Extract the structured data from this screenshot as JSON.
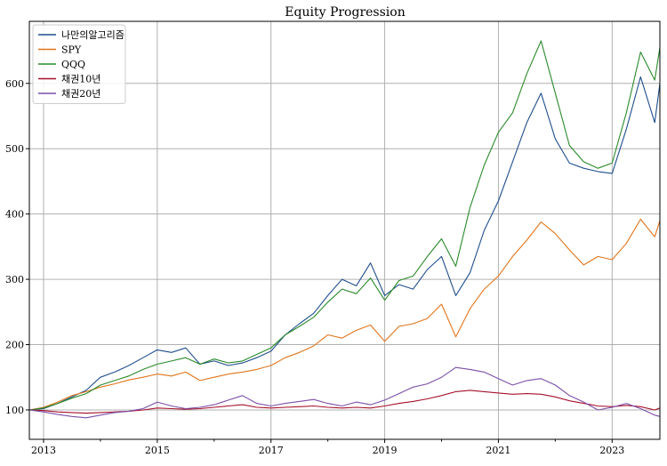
{
  "chart_data": {
    "type": "line",
    "title": "Equity Progression",
    "xlabel": "",
    "ylabel": "",
    "xlim": [
      2012.75,
      2023.84
    ],
    "ylim": [
      55,
      695
    ],
    "grid": true,
    "legend_position": "top-left",
    "x_ticks": [
      2013,
      2015,
      2017,
      2019,
      2021,
      2023
    ],
    "x_tick_labels": [
      "2013",
      "2015",
      "2017",
      "2019",
      "2021",
      "2023"
    ],
    "y_ticks": [
      100,
      200,
      300,
      400,
      500,
      600
    ],
    "y_tick_labels": [
      "100",
      "200",
      "300",
      "400",
      "500",
      "600"
    ],
    "series": [
      {
        "name": "나만의알고리즘",
        "color": "#1f4e8c",
        "points": [
          [
            2012.75,
            100
          ],
          [
            2013.0,
            102
          ],
          [
            2013.25,
            110
          ],
          [
            2013.5,
            120
          ],
          [
            2013.75,
            130
          ],
          [
            2014.0,
            150
          ],
          [
            2014.25,
            158
          ],
          [
            2014.5,
            168
          ],
          [
            2014.75,
            180
          ],
          [
            2015.0,
            192
          ],
          [
            2015.25,
            188
          ],
          [
            2015.5,
            195
          ],
          [
            2015.75,
            170
          ],
          [
            2016.0,
            175
          ],
          [
            2016.25,
            168
          ],
          [
            2016.5,
            172
          ],
          [
            2016.75,
            180
          ],
          [
            2017.0,
            190
          ],
          [
            2017.25,
            215
          ],
          [
            2017.5,
            232
          ],
          [
            2017.75,
            248
          ],
          [
            2018.0,
            275
          ],
          [
            2018.25,
            300
          ],
          [
            2018.5,
            290
          ],
          [
            2018.75,
            325
          ],
          [
            2019.0,
            275
          ],
          [
            2019.25,
            292
          ],
          [
            2019.5,
            285
          ],
          [
            2019.75,
            315
          ],
          [
            2020.0,
            335
          ],
          [
            2020.25,
            275
          ],
          [
            2020.5,
            310
          ],
          [
            2020.75,
            375
          ],
          [
            2021.0,
            420
          ],
          [
            2021.25,
            480
          ],
          [
            2021.5,
            540
          ],
          [
            2021.75,
            585
          ],
          [
            2022.0,
            515
          ],
          [
            2022.25,
            478
          ],
          [
            2022.5,
            470
          ],
          [
            2022.75,
            465
          ],
          [
            2023.0,
            462
          ],
          [
            2023.25,
            530
          ],
          [
            2023.5,
            610
          ],
          [
            2023.75,
            540
          ],
          [
            2023.84,
            600
          ]
        ]
      },
      {
        "name": "SPY",
        "color": "#e0741a",
        "points": [
          [
            2012.75,
            100
          ],
          [
            2013.0,
            104
          ],
          [
            2013.25,
            112
          ],
          [
            2013.5,
            122
          ],
          [
            2013.75,
            128
          ],
          [
            2014.0,
            135
          ],
          [
            2014.25,
            140
          ],
          [
            2014.5,
            146
          ],
          [
            2014.75,
            150
          ],
          [
            2015.0,
            155
          ],
          [
            2015.25,
            152
          ],
          [
            2015.5,
            158
          ],
          [
            2015.75,
            145
          ],
          [
            2016.0,
            150
          ],
          [
            2016.25,
            155
          ],
          [
            2016.5,
            158
          ],
          [
            2016.75,
            162
          ],
          [
            2017.0,
            168
          ],
          [
            2017.25,
            180
          ],
          [
            2017.5,
            188
          ],
          [
            2017.75,
            198
          ],
          [
            2018.0,
            215
          ],
          [
            2018.25,
            210
          ],
          [
            2018.5,
            222
          ],
          [
            2018.75,
            230
          ],
          [
            2019.0,
            205
          ],
          [
            2019.25,
            228
          ],
          [
            2019.5,
            232
          ],
          [
            2019.75,
            240
          ],
          [
            2020.0,
            262
          ],
          [
            2020.25,
            212
          ],
          [
            2020.5,
            255
          ],
          [
            2020.75,
            285
          ],
          [
            2021.0,
            305
          ],
          [
            2021.25,
            335
          ],
          [
            2021.5,
            360
          ],
          [
            2021.75,
            388
          ],
          [
            2022.0,
            370
          ],
          [
            2022.25,
            345
          ],
          [
            2022.5,
            322
          ],
          [
            2022.75,
            335
          ],
          [
            2023.0,
            330
          ],
          [
            2023.25,
            355
          ],
          [
            2023.5,
            392
          ],
          [
            2023.75,
            365
          ],
          [
            2023.84,
            390
          ]
        ]
      },
      {
        "name": "QQQ",
        "color": "#2a8a2a",
        "points": [
          [
            2012.75,
            100
          ],
          [
            2013.0,
            103
          ],
          [
            2013.25,
            110
          ],
          [
            2013.5,
            118
          ],
          [
            2013.75,
            125
          ],
          [
            2014.0,
            138
          ],
          [
            2014.25,
            145
          ],
          [
            2014.5,
            152
          ],
          [
            2014.75,
            162
          ],
          [
            2015.0,
            170
          ],
          [
            2015.25,
            175
          ],
          [
            2015.5,
            180
          ],
          [
            2015.75,
            170
          ],
          [
            2016.0,
            178
          ],
          [
            2016.25,
            172
          ],
          [
            2016.5,
            175
          ],
          [
            2016.75,
            185
          ],
          [
            2017.0,
            195
          ],
          [
            2017.25,
            215
          ],
          [
            2017.5,
            228
          ],
          [
            2017.75,
            242
          ],
          [
            2018.0,
            265
          ],
          [
            2018.25,
            285
          ],
          [
            2018.5,
            278
          ],
          [
            2018.75,
            302
          ],
          [
            2019.0,
            268
          ],
          [
            2019.25,
            298
          ],
          [
            2019.5,
            305
          ],
          [
            2019.75,
            335
          ],
          [
            2020.0,
            362
          ],
          [
            2020.25,
            320
          ],
          [
            2020.5,
            410
          ],
          [
            2020.75,
            475
          ],
          [
            2021.0,
            525
          ],
          [
            2021.25,
            555
          ],
          [
            2021.5,
            615
          ],
          [
            2021.75,
            665
          ],
          [
            2022.0,
            585
          ],
          [
            2022.25,
            505
          ],
          [
            2022.5,
            480
          ],
          [
            2022.75,
            470
          ],
          [
            2023.0,
            478
          ],
          [
            2023.25,
            555
          ],
          [
            2023.5,
            648
          ],
          [
            2023.75,
            605
          ],
          [
            2023.84,
            655
          ]
        ]
      },
      {
        "name": "채권10년",
        "color": "#a5102b",
        "points": [
          [
            2012.75,
            100
          ],
          [
            2013.0,
            99
          ],
          [
            2013.25,
            97
          ],
          [
            2013.5,
            96
          ],
          [
            2013.75,
            95
          ],
          [
            2014.0,
            96
          ],
          [
            2014.25,
            97
          ],
          [
            2014.5,
            98
          ],
          [
            2014.75,
            100
          ],
          [
            2015.0,
            103
          ],
          [
            2015.25,
            102
          ],
          [
            2015.5,
            101
          ],
          [
            2015.75,
            102
          ],
          [
            2016.0,
            104
          ],
          [
            2016.25,
            106
          ],
          [
            2016.5,
            108
          ],
          [
            2016.75,
            104
          ],
          [
            2017.0,
            103
          ],
          [
            2017.25,
            104
          ],
          [
            2017.5,
            105
          ],
          [
            2017.75,
            106
          ],
          [
            2018.0,
            104
          ],
          [
            2018.25,
            103
          ],
          [
            2018.5,
            104
          ],
          [
            2018.75,
            103
          ],
          [
            2019.0,
            106
          ],
          [
            2019.25,
            110
          ],
          [
            2019.5,
            113
          ],
          [
            2019.75,
            117
          ],
          [
            2020.0,
            122
          ],
          [
            2020.25,
            128
          ],
          [
            2020.5,
            130
          ],
          [
            2020.75,
            128
          ],
          [
            2021.0,
            126
          ],
          [
            2021.25,
            124
          ],
          [
            2021.5,
            125
          ],
          [
            2021.75,
            124
          ],
          [
            2022.0,
            120
          ],
          [
            2022.25,
            114
          ],
          [
            2022.5,
            110
          ],
          [
            2022.75,
            106
          ],
          [
            2023.0,
            105
          ],
          [
            2023.25,
            107
          ],
          [
            2023.5,
            105
          ],
          [
            2023.75,
            100
          ],
          [
            2023.84,
            103
          ]
        ]
      },
      {
        "name": "채권20년",
        "color": "#7b4fa8",
        "points": [
          [
            2012.75,
            100
          ],
          [
            2013.0,
            97
          ],
          [
            2013.25,
            93
          ],
          [
            2013.5,
            90
          ],
          [
            2013.75,
            88
          ],
          [
            2014.0,
            92
          ],
          [
            2014.25,
            96
          ],
          [
            2014.5,
            98
          ],
          [
            2014.75,
            102
          ],
          [
            2015.0,
            112
          ],
          [
            2015.25,
            106
          ],
          [
            2015.5,
            102
          ],
          [
            2015.75,
            104
          ],
          [
            2016.0,
            108
          ],
          [
            2016.25,
            115
          ],
          [
            2016.5,
            122
          ],
          [
            2016.75,
            110
          ],
          [
            2017.0,
            106
          ],
          [
            2017.25,
            110
          ],
          [
            2017.5,
            113
          ],
          [
            2017.75,
            116
          ],
          [
            2018.0,
            110
          ],
          [
            2018.25,
            106
          ],
          [
            2018.5,
            112
          ],
          [
            2018.75,
            108
          ],
          [
            2019.0,
            115
          ],
          [
            2019.25,
            125
          ],
          [
            2019.5,
            135
          ],
          [
            2019.75,
            140
          ],
          [
            2020.0,
            150
          ],
          [
            2020.25,
            165
          ],
          [
            2020.5,
            162
          ],
          [
            2020.75,
            158
          ],
          [
            2021.0,
            148
          ],
          [
            2021.25,
            138
          ],
          [
            2021.5,
            145
          ],
          [
            2021.75,
            148
          ],
          [
            2022.0,
            138
          ],
          [
            2022.25,
            122
          ],
          [
            2022.5,
            112
          ],
          [
            2022.75,
            100
          ],
          [
            2023.0,
            104
          ],
          [
            2023.25,
            110
          ],
          [
            2023.5,
            102
          ],
          [
            2023.75,
            92
          ],
          [
            2023.84,
            90
          ]
        ]
      }
    ]
  }
}
